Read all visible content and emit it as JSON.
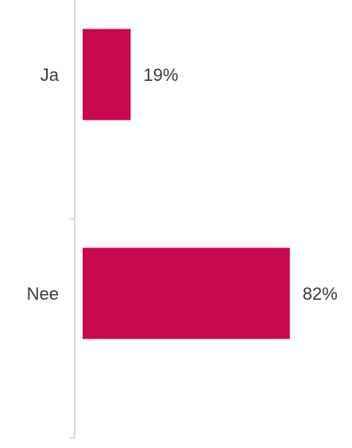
{
  "chart_data": {
    "type": "bar",
    "orientation": "horizontal",
    "categories": [
      "Ja",
      "Nee"
    ],
    "values": [
      19,
      82
    ],
    "value_labels": [
      "19%",
      "82%"
    ],
    "xlim": [
      0,
      100
    ],
    "grid": false,
    "bar_color": "#c8074f",
    "axis_color": "#d0d0d0",
    "label_color": "#3a3a3a"
  }
}
